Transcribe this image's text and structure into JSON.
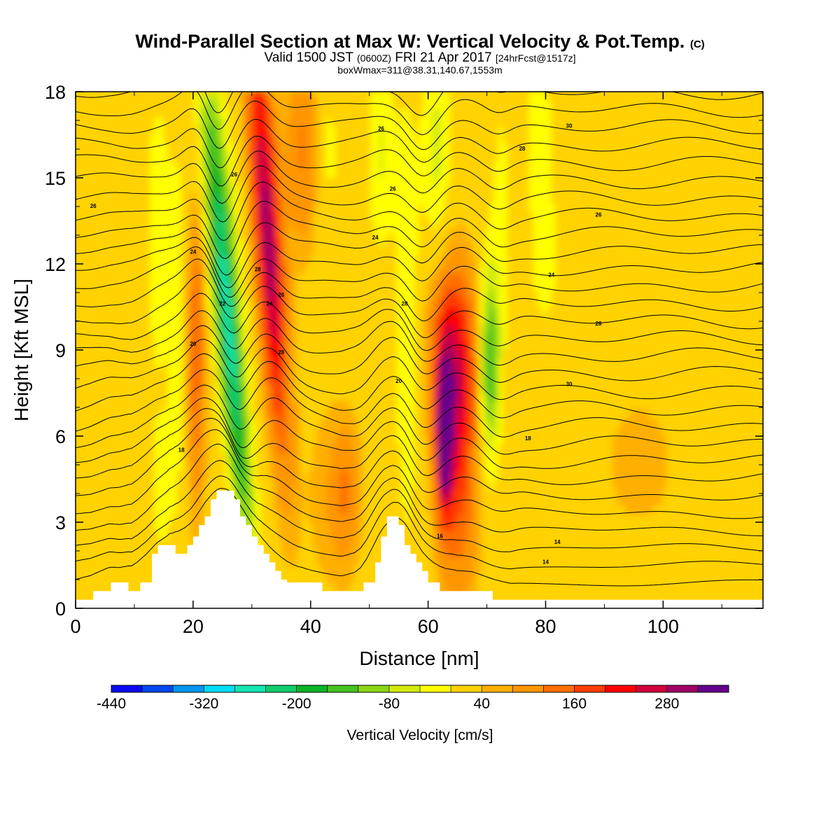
{
  "title": {
    "main": "Wind-Parallel Section at Max W: Vertical Velocity & Pot.Temp.",
    "main_mark": "(C)",
    "valid_prefix": "Valid 1500 JST",
    "valid_z": "(0600Z)",
    "valid_date": "FRI 21 Apr 2017",
    "valid_fcst": "[24hrFcst@1517z]",
    "box": "boxWmax=311@38.31,140.67,1553m"
  },
  "chart_data": {
    "type": "heatmap",
    "xlabel": "Distance [nm]",
    "ylabel": "Height [Kft MSL]",
    "xlim": [
      0,
      117
    ],
    "ylim": [
      0,
      18
    ],
    "x_ticks": [
      "0",
      "20",
      "40",
      "60",
      "80",
      "100"
    ],
    "y_ticks": [
      "0",
      "3",
      "6",
      "9",
      "12",
      "15",
      "18"
    ],
    "grid": false,
    "colorbar": {
      "label": "Vertical Velocity [cm/s]",
      "placement": "bottom",
      "start": -440,
      "step": 40,
      "tick_labels": [
        "-440",
        "-320",
        "-200",
        "-80",
        "40",
        "160",
        "280"
      ],
      "colors": [
        "#0a0af0",
        "#0046f0",
        "#0096f0",
        "#00dcf5",
        "#14e6b4",
        "#0fcd6e",
        "#0ab428",
        "#46c31e",
        "#8cd714",
        "#d2eb0a",
        "#ffff00",
        "#ffd200",
        "#ffaf00",
        "#ff9600",
        "#ff6e00",
        "#ff3c00",
        "#ff0000",
        "#d2003c",
        "#a00064",
        "#64008c"
      ]
    },
    "terrain": [
      [
        0,
        0.3
      ],
      [
        3,
        0.3
      ],
      [
        3,
        0.6
      ],
      [
        6,
        0.6
      ],
      [
        6,
        0.9
      ],
      [
        9,
        0.9
      ],
      [
        9,
        0.6
      ],
      [
        11,
        0.6
      ],
      [
        11,
        0.9
      ],
      [
        13,
        0.9
      ],
      [
        13,
        1.9
      ],
      [
        14,
        1.9
      ],
      [
        14,
        2.2
      ],
      [
        17,
        2.2
      ],
      [
        17,
        1.9
      ],
      [
        19,
        1.9
      ],
      [
        19,
        2.2
      ],
      [
        20,
        2.2
      ],
      [
        20,
        2.5
      ],
      [
        21,
        2.5
      ],
      [
        21,
        2.9
      ],
      [
        22,
        2.9
      ],
      [
        22,
        3.2
      ],
      [
        23,
        3.2
      ],
      [
        23,
        3.8
      ],
      [
        24,
        3.8
      ],
      [
        24,
        4.1
      ],
      [
        27,
        4.1
      ],
      [
        27,
        3.8
      ],
      [
        28,
        3.8
      ],
      [
        28,
        3.2
      ],
      [
        29,
        3.2
      ],
      [
        29,
        2.9
      ],
      [
        30,
        2.9
      ],
      [
        30,
        2.5
      ],
      [
        31,
        2.5
      ],
      [
        31,
        2.2
      ],
      [
        32,
        2.2
      ],
      [
        32,
        1.9
      ],
      [
        33,
        1.9
      ],
      [
        33,
        1.6
      ],
      [
        34,
        1.6
      ],
      [
        34,
        1.3
      ],
      [
        35,
        1.3
      ],
      [
        35,
        1.0
      ],
      [
        36,
        1.0
      ],
      [
        36,
        0.9
      ],
      [
        42,
        0.9
      ],
      [
        42,
        0.6
      ],
      [
        49,
        0.6
      ],
      [
        49,
        0.9
      ],
      [
        51,
        0.9
      ],
      [
        51,
        1.6
      ],
      [
        52,
        1.6
      ],
      [
        52,
        2.5
      ],
      [
        53,
        2.5
      ],
      [
        53,
        3.2
      ],
      [
        55,
        3.2
      ],
      [
        55,
        2.9
      ],
      [
        56,
        2.9
      ],
      [
        56,
        2.2
      ],
      [
        57,
        2.2
      ],
      [
        57,
        1.9
      ],
      [
        58,
        1.9
      ],
      [
        58,
        1.6
      ],
      [
        59,
        1.6
      ],
      [
        59,
        1.3
      ],
      [
        60,
        1.3
      ],
      [
        60,
        0.9
      ],
      [
        62,
        0.9
      ],
      [
        62,
        0.6
      ],
      [
        71,
        0.6
      ],
      [
        71,
        0.3
      ],
      [
        117,
        0.3
      ]
    ],
    "theta_labels": [
      {
        "x": 3,
        "y": 14.0,
        "text": "26"
      },
      {
        "x": 27,
        "y": 15.1,
        "text": "26"
      },
      {
        "x": 52,
        "y": 16.7,
        "text": "26"
      },
      {
        "x": 54,
        "y": 14.6,
        "text": "26"
      },
      {
        "x": 76,
        "y": 16.0,
        "text": "28"
      },
      {
        "x": 84,
        "y": 16.8,
        "text": "30"
      },
      {
        "x": 89,
        "y": 13.7,
        "text": "26"
      },
      {
        "x": 20,
        "y": 12.4,
        "text": "24"
      },
      {
        "x": 51,
        "y": 12.9,
        "text": "24"
      },
      {
        "x": 81,
        "y": 11.6,
        "text": "24"
      },
      {
        "x": 31,
        "y": 11.8,
        "text": "28"
      },
      {
        "x": 25,
        "y": 10.6,
        "text": "22"
      },
      {
        "x": 33,
        "y": 10.6,
        "text": "24"
      },
      {
        "x": 35,
        "y": 10.9,
        "text": "26"
      },
      {
        "x": 56,
        "y": 10.6,
        "text": "28"
      },
      {
        "x": 89,
        "y": 9.9,
        "text": "28"
      },
      {
        "x": 20,
        "y": 9.2,
        "text": "20"
      },
      {
        "x": 35,
        "y": 8.9,
        "text": "28"
      },
      {
        "x": 55,
        "y": 7.9,
        "text": "20"
      },
      {
        "x": 84,
        "y": 7.8,
        "text": "30"
      },
      {
        "x": 18,
        "y": 5.5,
        "text": "18"
      },
      {
        "x": 77,
        "y": 5.9,
        "text": "18"
      },
      {
        "x": 62,
        "y": 2.5,
        "text": "16"
      },
      {
        "x": 82,
        "y": 2.3,
        "text": "14"
      },
      {
        "x": 80,
        "y": 1.6,
        "text": "14"
      }
    ]
  }
}
